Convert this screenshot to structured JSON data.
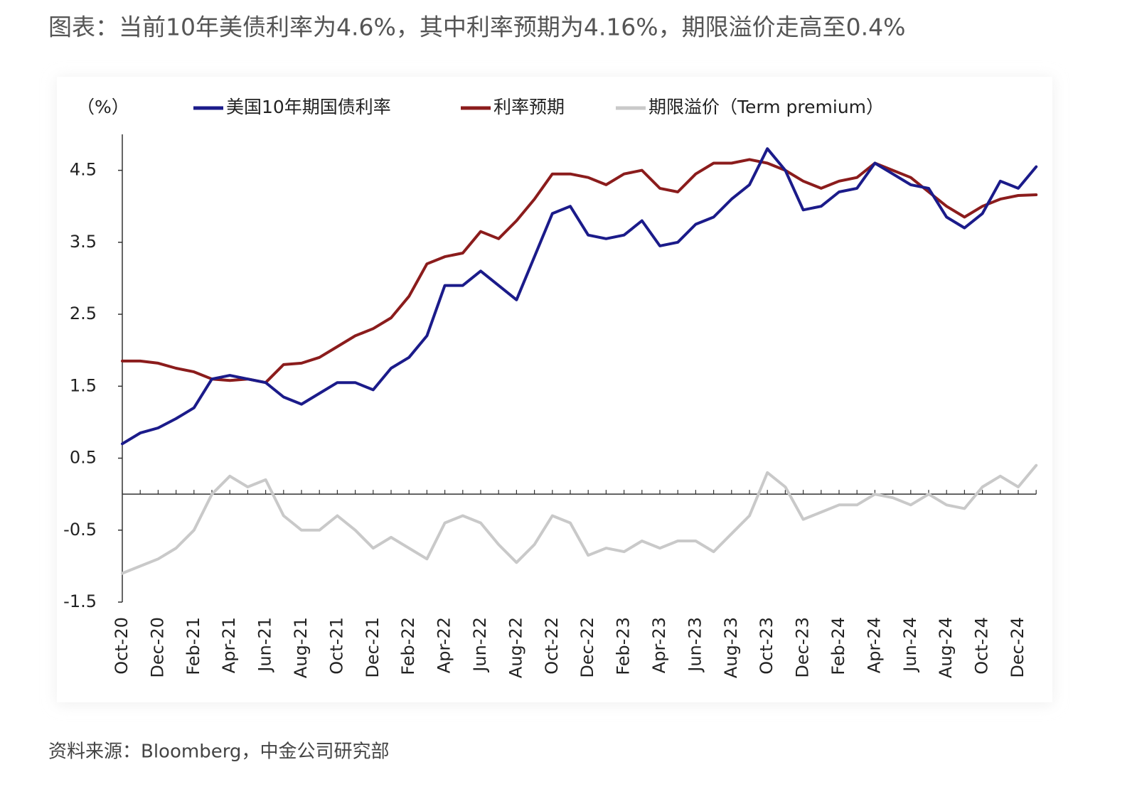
{
  "header": {
    "title": "图表：当前10年美债利率为4.6%，其中利率预期为4.16%，期限溢价走高至0.4%"
  },
  "footer": {
    "source": "资料来源：Bloomberg，中金公司研究部"
  },
  "chart_data": {
    "type": "line",
    "y_unit": "（%）",
    "categories": [
      "Oct-20",
      null,
      "Dec-20",
      null,
      "Feb-21",
      null,
      "Apr-21",
      null,
      "Jun-21",
      null,
      "Aug-21",
      null,
      "Oct-21",
      null,
      "Dec-21",
      null,
      "Feb-22",
      null,
      "Apr-22",
      null,
      "Jun-22",
      null,
      "Aug-22",
      null,
      "Oct-22",
      null,
      "Dec-22",
      null,
      "Feb-23",
      null,
      "Apr-23",
      null,
      "Jun-23",
      null,
      "Aug-23",
      null,
      "Oct-23",
      null,
      "Dec-23",
      null,
      "Feb-24",
      null,
      "Apr-24",
      null,
      "Jun-24",
      null,
      "Aug-24",
      null,
      "Oct-24",
      null,
      "Dec-24",
      null
    ],
    "series": [
      {
        "name": "美国10年期国债利率",
        "color": "#1b1b8a",
        "values": [
          0.7,
          0.85,
          0.92,
          1.05,
          1.2,
          1.6,
          1.65,
          1.6,
          1.55,
          1.35,
          1.25,
          1.4,
          1.55,
          1.55,
          1.45,
          1.75,
          1.9,
          2.2,
          2.9,
          2.9,
          3.1,
          2.9,
          2.7,
          3.3,
          3.9,
          4.0,
          3.6,
          3.55,
          3.6,
          3.8,
          3.45,
          3.5,
          3.75,
          3.85,
          4.1,
          4.3,
          4.8,
          4.5,
          3.95,
          4.0,
          4.2,
          4.25,
          4.6,
          4.45,
          4.3,
          4.25,
          3.85,
          3.7,
          3.9,
          4.35,
          4.25,
          4.55
        ]
      },
      {
        "name": "利率预期",
        "color": "#8b1c1c",
        "values": [
          1.85,
          1.85,
          1.82,
          1.75,
          1.7,
          1.6,
          1.58,
          1.6,
          1.55,
          1.8,
          1.82,
          1.9,
          2.05,
          2.2,
          2.3,
          2.45,
          2.75,
          3.2,
          3.3,
          3.35,
          3.65,
          3.55,
          3.8,
          4.1,
          4.45,
          4.45,
          4.4,
          4.3,
          4.45,
          4.5,
          4.25,
          4.2,
          4.45,
          4.6,
          4.6,
          4.65,
          4.6,
          4.5,
          4.35,
          4.25,
          4.35,
          4.4,
          4.6,
          4.5,
          4.4,
          4.2,
          4.0,
          3.85,
          4.0,
          4.1,
          4.15,
          4.16
        ]
      },
      {
        "name": "期限溢价（Term premium）",
        "color": "#c9c9c9",
        "values": [
          -1.1,
          -1.0,
          -0.9,
          -0.75,
          -0.5,
          0,
          0.25,
          0.1,
          0.2,
          -0.3,
          -0.5,
          -0.5,
          -0.3,
          -0.5,
          -0.75,
          -0.6,
          -0.75,
          -0.9,
          -0.4,
          -0.3,
          -0.4,
          -0.7,
          -0.95,
          -0.7,
          -0.3,
          -0.4,
          -0.85,
          -0.75,
          -0.8,
          -0.65,
          -0.75,
          -0.65,
          -0.65,
          -0.8,
          -0.55,
          -0.3,
          0.3,
          0.1,
          -0.35,
          -0.25,
          -0.15,
          -0.15,
          0,
          -0.05,
          -0.15,
          0,
          -0.15,
          -0.2,
          0.1,
          0.25,
          0.1,
          0.4
        ]
      }
    ],
    "ylim": [
      -1.5,
      5
    ],
    "yticks": [
      -1.5,
      -0.5,
      0.5,
      1.5,
      2.5,
      3.5,
      4.5
    ],
    "negative_tick_color": "#c0392b",
    "grid": false,
    "legend": "top"
  }
}
